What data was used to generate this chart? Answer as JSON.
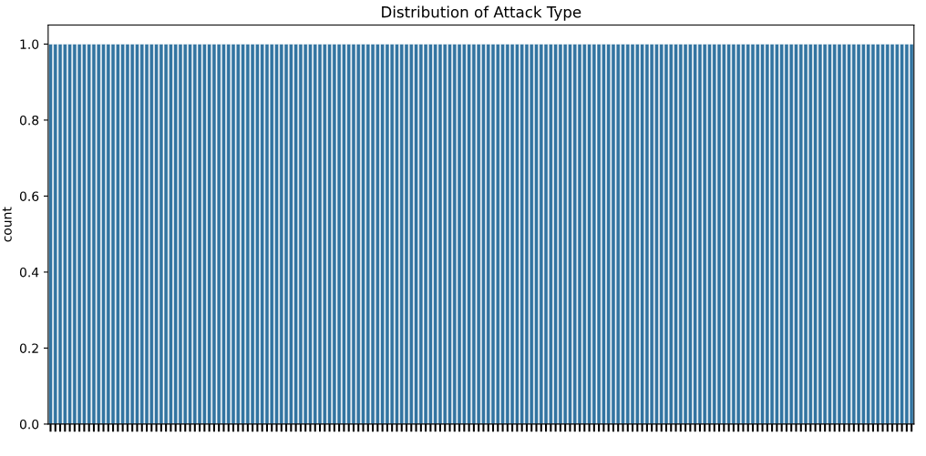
{
  "chart_data": {
    "type": "bar",
    "title": "Distribution of Attack Type",
    "ylabel": "count",
    "categories": [
      null,
      null,
      null,
      null,
      null,
      null,
      null,
      null,
      null,
      null,
      null,
      null,
      null,
      null,
      null,
      null,
      null,
      null,
      null,
      null,
      null,
      null,
      null,
      null,
      null,
      null,
      null,
      null,
      null,
      null,
      null,
      null,
      null,
      null,
      null,
      null,
      null,
      null,
      null,
      null,
      null,
      null,
      null,
      null,
      null,
      null,
      null,
      null,
      null,
      null,
      null,
      null,
      null,
      null,
      null,
      null,
      null,
      null,
      null,
      null,
      null,
      null,
      null,
      null,
      null,
      null,
      null,
      null,
      null,
      null,
      null,
      null,
      null,
      null,
      null,
      null,
      null,
      null,
      null,
      null,
      null,
      null,
      null,
      null,
      null,
      null,
      null,
      null,
      null,
      null,
      null,
      null,
      null,
      null,
      null,
      null,
      null,
      null,
      null,
      null,
      null,
      null,
      null,
      null,
      null,
      null,
      null,
      null,
      null,
      null,
      null,
      null,
      null,
      null,
      null,
      null,
      null,
      null,
      null,
      null,
      null,
      null,
      null,
      null,
      null,
      null,
      null,
      null,
      null,
      null,
      null,
      null,
      null,
      null,
      null,
      null,
      null,
      null,
      null,
      null,
      null,
      null,
      null,
      null,
      null,
      null,
      null,
      null,
      null,
      null,
      null,
      null,
      null,
      null,
      null,
      null,
      null,
      null,
      null,
      null,
      null,
      null,
      null,
      null,
      null,
      null,
      null,
      null,
      null,
      null,
      null,
      null,
      null,
      null,
      null,
      null,
      null,
      null,
      null,
      null
    ],
    "values": [
      1,
      1,
      1,
      1,
      1,
      1,
      1,
      1,
      1,
      1,
      1,
      1,
      1,
      1,
      1,
      1,
      1,
      1,
      1,
      1,
      1,
      1,
      1,
      1,
      1,
      1,
      1,
      1,
      1,
      1,
      1,
      1,
      1,
      1,
      1,
      1,
      1,
      1,
      1,
      1,
      1,
      1,
      1,
      1,
      1,
      1,
      1,
      1,
      1,
      1,
      1,
      1,
      1,
      1,
      1,
      1,
      1,
      1,
      1,
      1,
      1,
      1,
      1,
      1,
      1,
      1,
      1,
      1,
      1,
      1,
      1,
      1,
      1,
      1,
      1,
      1,
      1,
      1,
      1,
      1,
      1,
      1,
      1,
      1,
      1,
      1,
      1,
      1,
      1,
      1,
      1,
      1,
      1,
      1,
      1,
      1,
      1,
      1,
      1,
      1,
      1,
      1,
      1,
      1,
      1,
      1,
      1,
      1,
      1,
      1,
      1,
      1,
      1,
      1,
      1,
      1,
      1,
      1,
      1,
      1,
      1,
      1,
      1,
      1,
      1,
      1,
      1,
      1,
      1,
      1,
      1,
      1,
      1,
      1,
      1,
      1,
      1,
      1,
      1,
      1,
      1,
      1,
      1,
      1,
      1,
      1,
      1,
      1,
      1,
      1,
      1,
      1,
      1,
      1,
      1,
      1,
      1,
      1,
      1,
      1,
      1,
      1,
      1,
      1,
      1,
      1,
      1,
      1,
      1,
      1,
      1,
      1,
      1,
      1,
      1,
      1,
      1,
      1,
      1,
      1
    ],
    "color": "#3274a1",
    "ylim": [
      0,
      1.05
    ],
    "yticks": [
      {
        "value": 0,
        "label": "0.0"
      },
      {
        "value": 0.2,
        "label": "0.2"
      },
      {
        "value": 0.4,
        "label": "0.4"
      },
      {
        "value": 0.6,
        "label": "0.6"
      },
      {
        "value": 0.8,
        "label": "0.8"
      },
      {
        "value": 1.0,
        "label": "1.0"
      }
    ]
  }
}
